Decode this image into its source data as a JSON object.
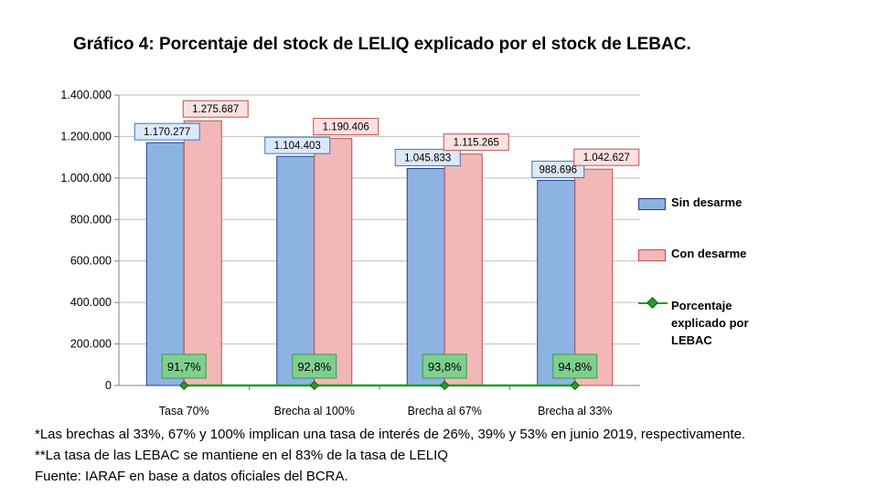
{
  "chart_data": {
    "type": "bar",
    "title": "Gráfico 4: Porcentaje del stock de LELIQ explicado por el stock de LEBAC.",
    "categories": [
      "Tasa 70%",
      "Brecha al 100%",
      "Brecha al 67%",
      "Brecha al 33%"
    ],
    "series": [
      {
        "name": "Sin desarme",
        "values": [
          1170277,
          1104403,
          1045833,
          988696
        ],
        "labels": [
          "1.170.277",
          "1.104.403",
          "1.045.833",
          "988.696"
        ],
        "color": "#8db3e2"
      },
      {
        "name": "Con desarme",
        "values": [
          1275687,
          1190406,
          1115265,
          1042627
        ],
        "labels": [
          "1.275.687",
          "1.190.406",
          "1.115.265",
          "1.042.627"
        ],
        "color": "#f2b8b8"
      },
      {
        "name": "Porcentaje explicado por LEBAC",
        "type": "line",
        "values": [
          91.7,
          92.8,
          93.8,
          94.8
        ],
        "labels": [
          "91,7%",
          "92,8%",
          "93,8%",
          "94,8%"
        ],
        "color": "#22a022"
      }
    ],
    "ylim": [
      0,
      1400000
    ],
    "yticks": [
      0,
      200000,
      400000,
      600000,
      800000,
      1000000,
      1200000,
      1400000
    ],
    "ytick_labels": [
      "0",
      "200.000",
      "400.000",
      "600.000",
      "800.000",
      "1.000.000",
      "1.200.000",
      "1.400.000"
    ],
    "grid": true,
    "legend_position": "right"
  },
  "legend": {
    "sin_desarme": "Sin desarme",
    "con_desarme": "Con desarme",
    "porcentaje_line1": "Porcentaje",
    "porcentaje_line2": "explicado por",
    "porcentaje_line3": "LEBAC"
  },
  "footnotes": {
    "note1": "*Las brechas al 33%, 67% y 100% implican una tasa de interés de 26%, 39% y 53% en junio 2019, respectivamente.",
    "note2": "**La tasa de las LEBAC se mantiene en el 83% de la tasa de LELIQ",
    "source": "Fuente: IARAF en base a datos oficiales del BCRA."
  },
  "colors": {
    "blue_fill": "#8db3e2",
    "blue_border": "#1f3f8f",
    "blue_label_bg": "#dbe9f8",
    "red_fill": "#f2b8b8",
    "red_border": "#c0504d",
    "red_label_bg": "#fbe2e2",
    "green": "#22a022",
    "green_label_bg": "#7fcf8f"
  }
}
